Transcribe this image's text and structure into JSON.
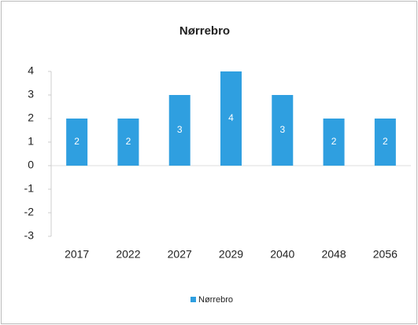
{
  "chart_data": {
    "type": "bar",
    "title": "Nørrebro",
    "categories": [
      "2017",
      "2022",
      "2027",
      "2029",
      "2040",
      "2048",
      "2056"
    ],
    "series": [
      {
        "name": "Nørrebro",
        "color": "#2f9fe0",
        "values": [
          2,
          2,
          3,
          4,
          3,
          2,
          2
        ]
      }
    ],
    "ylim": [
      -3,
      4
    ],
    "yticks": [
      -3,
      -2,
      -1,
      0,
      1,
      2,
      3,
      4
    ],
    "legend": "bottom"
  }
}
